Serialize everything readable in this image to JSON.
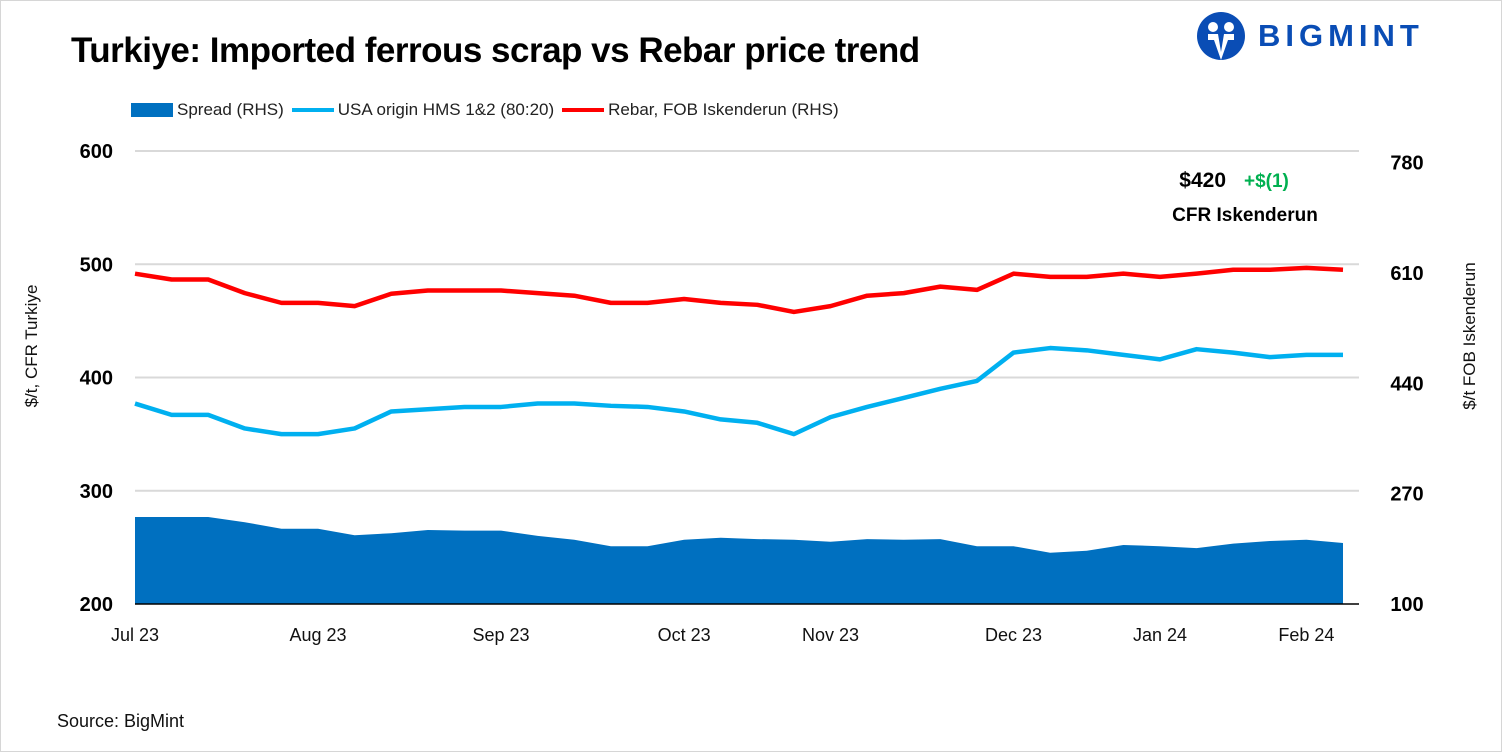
{
  "title": "Turkiye: Imported ferrous scrap vs Rebar price trend",
  "logo_text": "BIGMINT",
  "source": "Source: BigMint",
  "annotation": {
    "price": "$420",
    "change": "+$(1)",
    "label": "CFR Iskenderun",
    "change_color": "#00b050"
  },
  "chart_data": {
    "type": "line",
    "title": "Turkiye: Imported ferrous scrap vs Rebar price trend",
    "x_tick_labels": [
      {
        "index": 0,
        "label": "Jul 23"
      },
      {
        "index": 5,
        "label": "Aug 23"
      },
      {
        "index": 10,
        "label": "Sep 23"
      },
      {
        "index": 15,
        "label": "Oct 23"
      },
      {
        "index": 19,
        "label": "Nov 23"
      },
      {
        "index": 24,
        "label": "Dec 23"
      },
      {
        "index": 28,
        "label": "Jan 24"
      },
      {
        "index": 32,
        "label": "Feb 24"
      }
    ],
    "ylabel_left": "$/t, CFR Turkiye",
    "ylabel_right": "$/t FOB Iskenderun",
    "ylim_left": [
      200,
      600
    ],
    "yticks_left": [
      200,
      300,
      400,
      500,
      600
    ],
    "ylim_right": [
      100,
      798
    ],
    "yticks_right": [
      100,
      270,
      440,
      610,
      780
    ],
    "grid": true,
    "legend_position": "top-left",
    "series": [
      {
        "name": "Spread (RHS)",
        "type": "area",
        "axis": "right",
        "color": "#0070c0",
        "values": [
          234,
          234,
          234,
          226,
          216,
          216,
          206,
          209,
          214,
          213,
          213,
          205,
          199,
          189,
          189,
          199,
          202,
          200,
          199,
          196,
          200,
          199,
          200,
          189,
          189,
          179,
          182,
          191,
          189,
          186,
          193,
          197,
          199,
          194
        ]
      },
      {
        "name": "USA origin HMS 1&2 (80:20)",
        "type": "line",
        "axis": "left",
        "color": "#00b0f0",
        "values": [
          377,
          367,
          367,
          355,
          350,
          350,
          355,
          370,
          372,
          374,
          374,
          377,
          377,
          375,
          374,
          370,
          363,
          360,
          350,
          365,
          374,
          382,
          390,
          397,
          422,
          426,
          424,
          420,
          416,
          425,
          422,
          418,
          420,
          420
        ]
      },
      {
        "name": "Rebar, FOB Iskenderun (RHS)",
        "type": "line",
        "axis": "right",
        "color": "#ff0000",
        "values": [
          609,
          600,
          600,
          579,
          564,
          564,
          559,
          578,
          583,
          583,
          583,
          579,
          575,
          564,
          564,
          570,
          564,
          561,
          550,
          559,
          575,
          579,
          589,
          584,
          609,
          604,
          604,
          609,
          604,
          609,
          615,
          615,
          618,
          615
        ]
      }
    ]
  }
}
